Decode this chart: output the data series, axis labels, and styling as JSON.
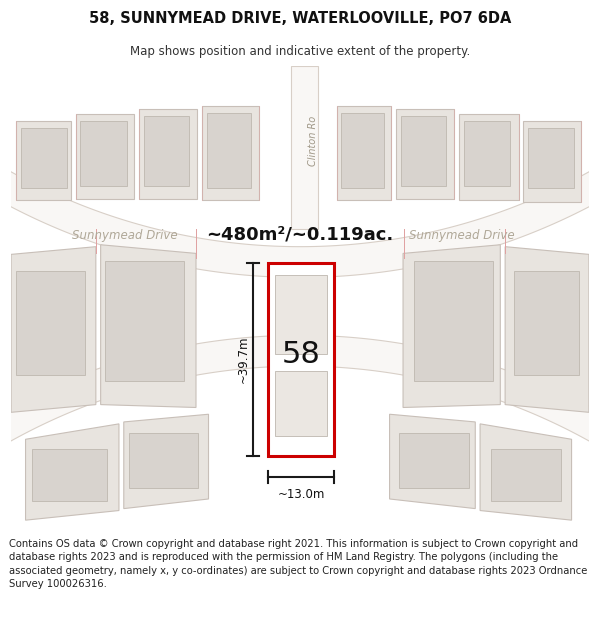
{
  "title": "58, SUNNYMEAD DRIVE, WATERLOOVILLE, PO7 6DA",
  "subtitle": "Map shows position and indicative extent of the property.",
  "footer": "Contains OS data © Crown copyright and database right 2021. This information is subject to Crown copyright and database rights 2023 and is reproduced with the permission of HM Land Registry. The polygons (including the associated geometry, namely x, y co-ordinates) are subject to Crown copyright and database rights 2023 Ordnance Survey 100026316.",
  "area_label": "~480m²/~0.119ac.",
  "width_label": "~13.0m",
  "height_label": "~39.7m",
  "plot_number": "58",
  "map_bg": "#ede9e4",
  "road_color": "#f9f7f5",
  "road_outline_color": "#d8cfc7",
  "plot_fill": "#ffffff",
  "plot_outline": "#cc0000",
  "neighbor_plot_fill": "#e8e4df",
  "neighbor_plot_outline": "#c8bfb8",
  "building_fill": "#d8d3ce",
  "building_outline": "#b8b0a8",
  "neighbor_outline_thin": "#e0a0a0",
  "street_label_color": "#b0a898",
  "dim_line_color": "#1a1a1a",
  "title_fontsize": 10.5,
  "subtitle_fontsize": 8.5,
  "footer_fontsize": 7.2,
  "area_label_fontsize": 13,
  "street_label_fontsize": 8.5,
  "plot_label_fontsize": 22,
  "dim_label_fontsize": 8.5
}
